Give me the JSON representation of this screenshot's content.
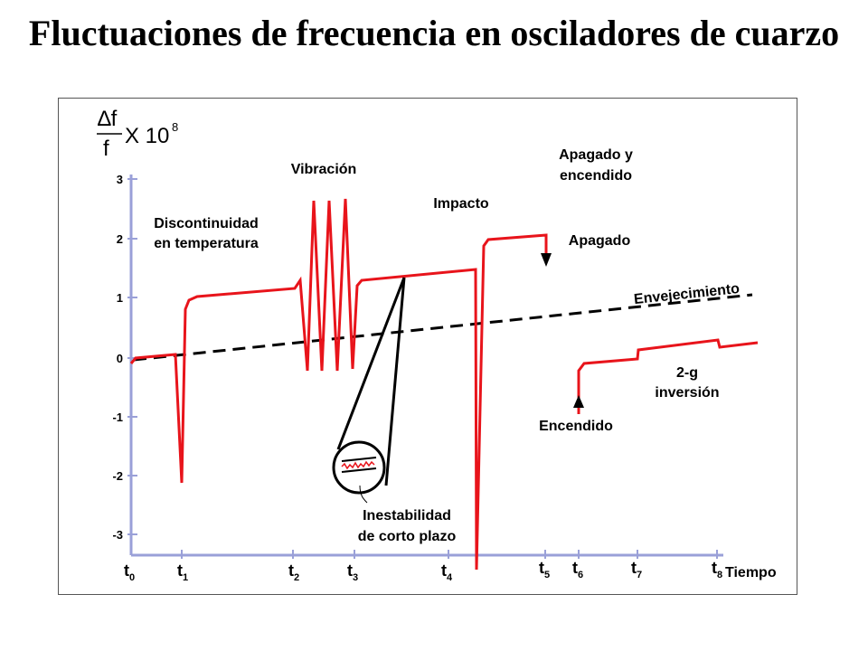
{
  "title": "Fluctuaciones de frecuencia en osciladores de cuarzo",
  "y_axis": {
    "numerator": "∆f",
    "denominator": "f",
    "multiplier": "X 10",
    "exponent": "8",
    "ticks": [
      "3",
      "2",
      "1",
      "0",
      "-1",
      "-2",
      "-3"
    ]
  },
  "x_axis": {
    "label": "Tiempo",
    "ticks": [
      {
        "base": "t",
        "sub": "0"
      },
      {
        "base": "t",
        "sub": "1"
      },
      {
        "base": "t",
        "sub": "2"
      },
      {
        "base": "t",
        "sub": "3"
      },
      {
        "base": "t",
        "sub": "4"
      },
      {
        "base": "t",
        "sub": "5"
      },
      {
        "base": "t",
        "sub": "6"
      },
      {
        "base": "t",
        "sub": "7"
      },
      {
        "base": "t",
        "sub": "8"
      }
    ]
  },
  "annotations": {
    "temperature_line1": "Discontinuidad",
    "temperature_line2": "en temperatura",
    "vibration": "Vibración",
    "shock": "Impacto",
    "offon_line1": "Apagado y",
    "offon_line2": "encendido",
    "off": "Apagado",
    "aging": "Envejecimiento",
    "on": "Encendido",
    "inversion_line1": "2-g",
    "inversion_line2": "inversión",
    "shortterm_line1": "Inestabilidad",
    "shortterm_line2": "de corto plazo"
  },
  "colors": {
    "trace": "#e8141b",
    "axis": "#9aa0d8",
    "aging_line": "#000000"
  }
}
